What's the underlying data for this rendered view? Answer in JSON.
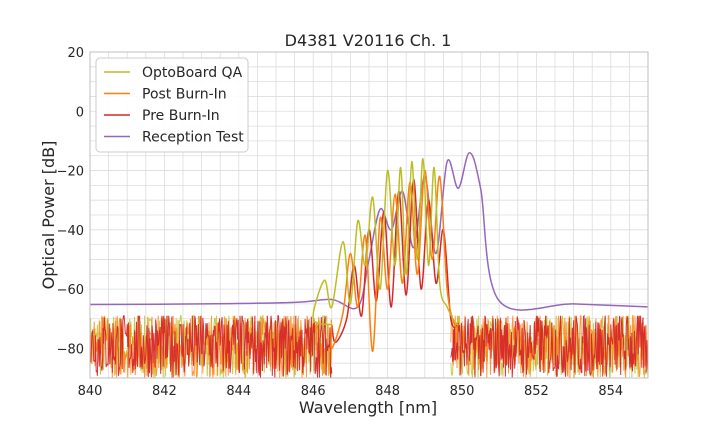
{
  "chart_data": {
    "type": "line",
    "title": "D4381 V20116 Ch. 1",
    "xlabel": "Wavelength [nm]",
    "ylabel": "Optical Power [dB]",
    "xlim": [
      840,
      855
    ],
    "ylim": [
      -90,
      20
    ],
    "xticks": [
      840,
      842,
      844,
      846,
      848,
      850,
      852,
      854
    ],
    "yticks": [
      -80,
      -60,
      -40,
      -20,
      0,
      20
    ],
    "xtick_labels": [
      "840",
      "842",
      "844",
      "846",
      "848",
      "850",
      "852",
      "854"
    ],
    "ytick_labels": [
      "−80",
      "−60",
      "−40",
      "−20",
      "0",
      "20"
    ],
    "grid": true,
    "legend_position": "top-left",
    "noise_floor": {
      "range_db": [
        -90,
        -70
      ],
      "note": "dense noise on OptoBoard QA, Post Burn-In, Pre Burn-In below 846.5 nm and above 849.7 nm"
    },
    "series": [
      {
        "name": "OptoBoard QA",
        "color": "#bcbd22",
        "baseline_db": -72,
        "x": [
          846.0,
          846.3,
          846.5,
          846.8,
          847.0,
          847.2,
          847.4,
          847.6,
          847.8,
          848.0,
          848.2,
          848.35,
          848.5,
          848.65,
          848.8,
          848.95,
          849.1,
          849.25,
          849.4,
          849.6,
          849.8
        ],
        "y": [
          -70,
          -57,
          -66,
          -44,
          -65,
          -37,
          -52,
          -29,
          -60,
          -20,
          -52,
          -19,
          -55,
          -17,
          -50,
          -16,
          -52,
          -19,
          -58,
          -66,
          -71
        ]
      },
      {
        "name": "Post Burn-In",
        "color": "#ff7f0e",
        "baseline_db": -72,
        "x": [
          846.5,
          846.8,
          847.0,
          847.2,
          847.4,
          847.6,
          847.8,
          848.0,
          848.2,
          848.4,
          848.6,
          848.8,
          849.0,
          849.2,
          849.4,
          849.6,
          849.8
        ],
        "y": [
          -80,
          -68,
          -48,
          -66,
          -42,
          -81,
          -36,
          -60,
          -28,
          -58,
          -24,
          -55,
          -20,
          -50,
          -22,
          -60,
          -72
        ]
      },
      {
        "name": "Pre Burn-In",
        "color": "#d62728",
        "baseline_db": -72,
        "x": [
          846.6,
          846.9,
          847.1,
          847.3,
          847.5,
          847.7,
          847.9,
          848.1,
          848.3,
          848.5,
          848.7,
          848.9,
          849.1,
          849.3,
          849.5,
          849.7
        ],
        "y": [
          -78,
          -70,
          -52,
          -69,
          -40,
          -64,
          -34,
          -66,
          -27,
          -62,
          -23,
          -60,
          -30,
          -58,
          -40,
          -70
        ]
      },
      {
        "name": "Reception Test",
        "color": "#9467bd",
        "baseline_db": -65,
        "x": [
          840.0,
          843.0,
          845.5,
          846.5,
          847.2,
          847.5,
          847.8,
          848.1,
          848.4,
          848.7,
          849.0,
          849.3,
          849.6,
          849.9,
          850.2,
          850.5,
          851.0,
          853.0,
          855.0
        ],
        "y": [
          -65.2,
          -65.0,
          -64.5,
          -63.5,
          -66,
          -50,
          -33,
          -40,
          -27,
          -46,
          -22,
          -48,
          -17,
          -26,
          -14,
          -26,
          -64,
          -65,
          -66
        ]
      }
    ]
  }
}
